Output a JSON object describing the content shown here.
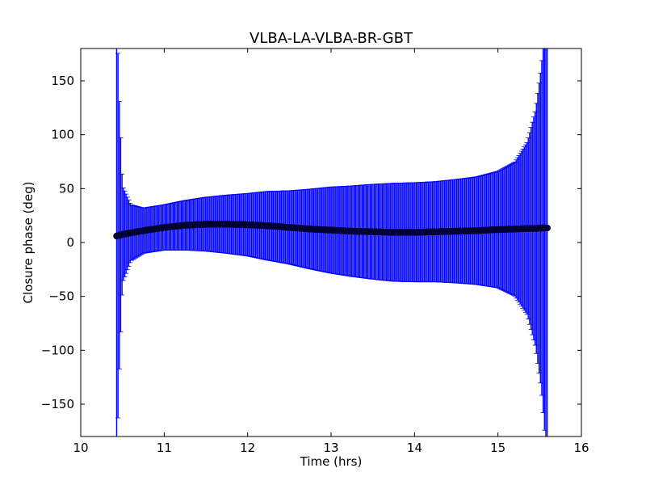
{
  "chart_data": {
    "type": "scatter",
    "title": "VLBA-LA-VLBA-BR-GBT",
    "xlabel": "Time (hrs)",
    "ylabel": "Closure phase (deg)",
    "xlim": [
      10,
      16
    ],
    "ylim": [
      -180,
      180
    ],
    "x_ticks": [
      10,
      11,
      12,
      13,
      14,
      15,
      16
    ],
    "y_ticks": [
      -150,
      -100,
      -50,
      0,
      50,
      100,
      150
    ],
    "x_tick_labels": [
      "10",
      "11",
      "12",
      "13",
      "14",
      "15",
      "16"
    ],
    "y_tick_labels": [
      "−150",
      "−100",
      "−50",
      "0",
      "50",
      "100",
      "150"
    ],
    "grid": false,
    "legend": "none",
    "error_bar_color": "#0000ff",
    "marker_color": "#000033",
    "series": [
      {
        "x": [
          10.43,
          10.45,
          10.5,
          10.6,
          10.75,
          11.0,
          11.25,
          11.5,
          11.75,
          12.0,
          12.25,
          12.5,
          12.75,
          13.0,
          13.25,
          13.5,
          13.75,
          14.0,
          14.25,
          14.5,
          14.75,
          15.0,
          15.2,
          15.35,
          15.45,
          15.52,
          15.57,
          15.59
        ],
        "y": [
          6,
          6.5,
          7.5,
          9,
          11,
          14,
          16,
          17,
          17,
          16.5,
          15.5,
          14,
          12.5,
          11.5,
          10.5,
          10,
          9.5,
          9.5,
          10,
          10.5,
          11,
          12,
          12.5,
          13,
          13,
          13.5,
          13.5,
          13.5
        ],
        "error": [
          250,
          150,
          45,
          26,
          21,
          21,
          23,
          25,
          27,
          29,
          32,
          34,
          37,
          40,
          42,
          44,
          45.5,
          46,
          46.5,
          48,
          50,
          54,
          62,
          80,
          110,
          150,
          200,
          220
        ]
      }
    ]
  }
}
